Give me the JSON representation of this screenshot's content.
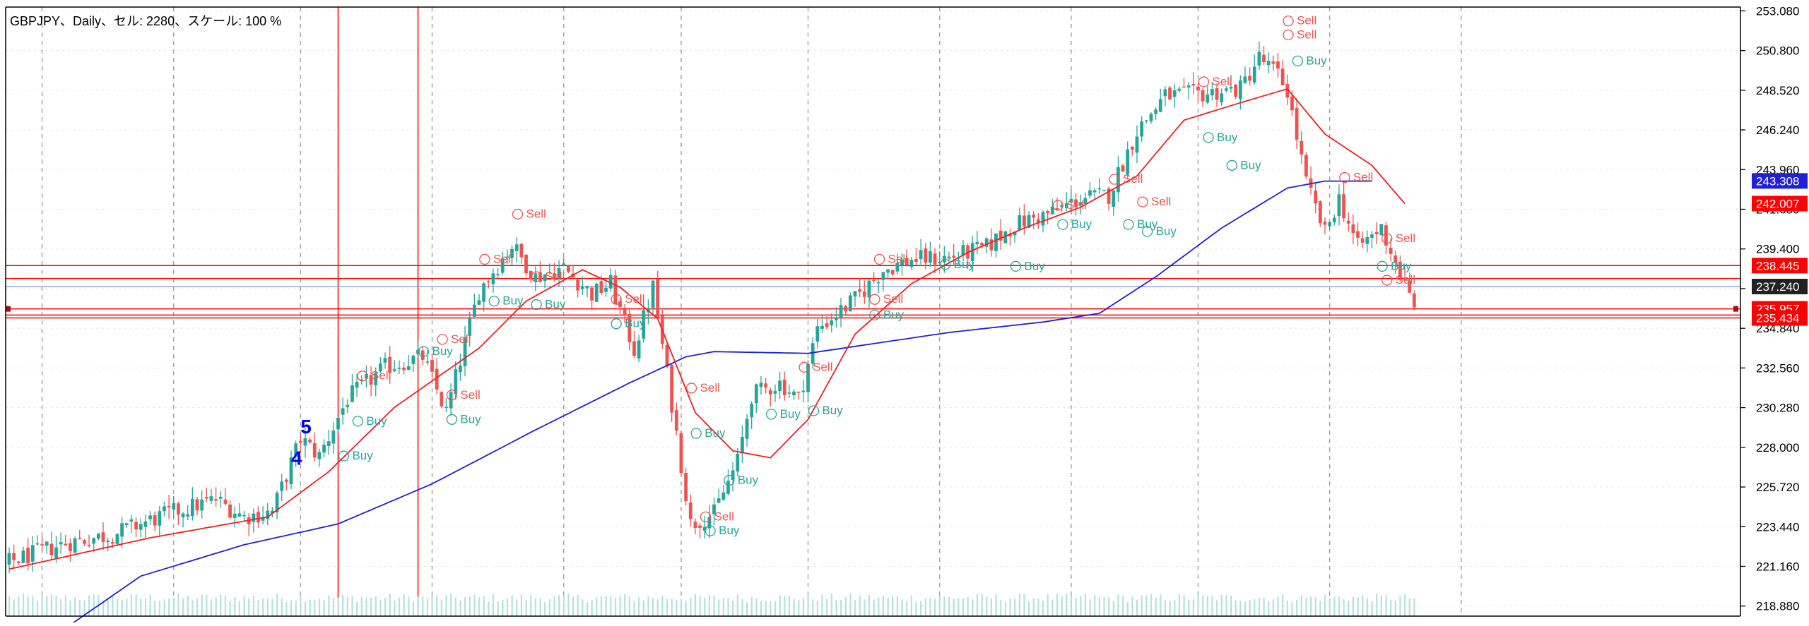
{
  "header": {
    "title": "GBPJPY、Daily、セル: 2280、スケール: 100 %"
  },
  "colors": {
    "bull": "#26a69a",
    "bear": "#ef5350",
    "ma_fast": "#ef1f1f",
    "ma_slow": "#1f1fdc",
    "hline": "#ff0000",
    "bid_line": "#7a9ad8",
    "buy_text": "#26a69a",
    "sell_text": "#ef5350",
    "wave": "#0000ff"
  },
  "chart_data": {
    "type": "candlestick",
    "symbol": "GBPJPY",
    "timeframe": "Daily",
    "ylim": [
      218.3,
      253.3
    ],
    "y_ticks": [
      "253.080",
      "250.800",
      "248.520",
      "246.240",
      "243.960",
      "241.680",
      "239.400",
      "237.120",
      "234.840",
      "232.560",
      "230.280",
      "228.000",
      "225.720",
      "223.440",
      "221.160",
      "218.880"
    ],
    "price_labels": [
      {
        "value": "243.308",
        "price": 243.308,
        "color": "#1f1fdc"
      },
      {
        "value": "242.007",
        "price": 242.007,
        "color": "#ff0000"
      },
      {
        "value": "238.445",
        "price": 238.445,
        "color": "#ff0000"
      },
      {
        "value": "237.240",
        "price": 237.24,
        "color": "#222222"
      },
      {
        "value": "235.957",
        "price": 235.957,
        "color": "#ff0000"
      },
      {
        "value": "235.434",
        "price": 235.434,
        "color": "#ff0000"
      }
    ],
    "horizontal_lines": [
      238.445,
      237.7,
      235.957,
      235.6,
      235.434
    ],
    "bid_line": 237.24,
    "vertical_lines_red_index": [
      70,
      87
    ],
    "vertical_grid_index": [
      7,
      35,
      62,
      90,
      118,
      143,
      170,
      198,
      226,
      253,
      281,
      309
    ],
    "path_anchors": [
      [
        0,
        221.4
      ],
      [
        12,
        222.5
      ],
      [
        22,
        223.0
      ],
      [
        34,
        224.2
      ],
      [
        44,
        225.0
      ],
      [
        50,
        224.0
      ],
      [
        56,
        224.3
      ],
      [
        62,
        228.5
      ],
      [
        66,
        227.5
      ],
      [
        72,
        230.8
      ],
      [
        80,
        232.6
      ],
      [
        88,
        233.2
      ],
      [
        93,
        230.0
      ],
      [
        100,
        237.0
      ],
      [
        107,
        239.6
      ],
      [
        112,
        237.8
      ],
      [
        118,
        238.3
      ],
      [
        124,
        236.8
      ],
      [
        128,
        237.4
      ],
      [
        133,
        233.6
      ],
      [
        137,
        237.2
      ],
      [
        141,
        230.5
      ],
      [
        145,
        223.6
      ],
      [
        150,
        224.2
      ],
      [
        155,
        227.2
      ],
      [
        158,
        231.0
      ],
      [
        164,
        231.7
      ],
      [
        168,
        230.8
      ],
      [
        172,
        234.8
      ],
      [
        180,
        236.5
      ],
      [
        186,
        238.2
      ],
      [
        192,
        238.8
      ],
      [
        200,
        238.9
      ],
      [
        208,
        239.5
      ],
      [
        214,
        240.8
      ],
      [
        222,
        241.5
      ],
      [
        228,
        242.3
      ],
      [
        234,
        242.5
      ],
      [
        240,
        246.2
      ],
      [
        246,
        248.2
      ],
      [
        254,
        248.3
      ],
      [
        262,
        248.6
      ],
      [
        266,
        250.4
      ],
      [
        270,
        249.4
      ],
      [
        272,
        248.5
      ],
      [
        276,
        243.2
      ],
      [
        280,
        240.3
      ],
      [
        283,
        242.3
      ],
      [
        287,
        239.5
      ],
      [
        292,
        240.6
      ],
      [
        296,
        238.0
      ],
      [
        299,
        235.9
      ]
    ],
    "ma_fast_anchors": [
      [
        0,
        221.0
      ],
      [
        30,
        222.8
      ],
      [
        55,
        224.0
      ],
      [
        68,
        226.6
      ],
      [
        82,
        230.3
      ],
      [
        100,
        233.7
      ],
      [
        110,
        236.4
      ],
      [
        122,
        238.2
      ],
      [
        130,
        237.2
      ],
      [
        138,
        235.4
      ],
      [
        146,
        230.0
      ],
      [
        154,
        227.8
      ],
      [
        162,
        227.4
      ],
      [
        170,
        229.6
      ],
      [
        180,
        234.5
      ],
      [
        192,
        237.4
      ],
      [
        204,
        239.2
      ],
      [
        216,
        240.6
      ],
      [
        228,
        241.8
      ],
      [
        240,
        243.6
      ],
      [
        250,
        246.8
      ],
      [
        262,
        247.8
      ],
      [
        272,
        248.6
      ],
      [
        280,
        246.0
      ],
      [
        290,
        244.2
      ],
      [
        297,
        242.0
      ]
    ],
    "ma_slow_anchors": [
      [
        13,
        217.8
      ],
      [
        28,
        220.6
      ],
      [
        50,
        222.4
      ],
      [
        70,
        223.6
      ],
      [
        90,
        225.9
      ],
      [
        112,
        229.0
      ],
      [
        132,
        231.7
      ],
      [
        144,
        233.2
      ],
      [
        150,
        233.5
      ],
      [
        170,
        233.4
      ],
      [
        180,
        233.8
      ],
      [
        200,
        234.6
      ],
      [
        220,
        235.2
      ],
      [
        232,
        235.7
      ],
      [
        244,
        237.8
      ],
      [
        258,
        240.6
      ],
      [
        272,
        242.9
      ],
      [
        280,
        243.3
      ],
      [
        290,
        243.3
      ]
    ],
    "signals": [
      {
        "type": "Sell",
        "i": 110,
        "price": 241.2
      },
      {
        "type": "Sell",
        "i": 103,
        "price": 238.6
      },
      {
        "type": "Buy",
        "i": 105,
        "price": 236.2
      },
      {
        "type": "Buy",
        "i": 114,
        "price": 236.0
      },
      {
        "type": "Sell",
        "i": 114,
        "price": 237.6
      },
      {
        "type": "Sell",
        "i": 131,
        "price": 236.3
      },
      {
        "type": "Buy",
        "i": 131,
        "price": 234.9
      },
      {
        "type": "Sell",
        "i": 94,
        "price": 234.0
      },
      {
        "type": "Buy",
        "i": 90,
        "price": 233.3
      },
      {
        "type": "Sell",
        "i": 77,
        "price": 231.9
      },
      {
        "type": "Buy",
        "i": 76,
        "price": 229.3
      },
      {
        "type": "Sell",
        "i": 96,
        "price": 230.8
      },
      {
        "type": "Buy",
        "i": 96,
        "price": 229.4
      },
      {
        "type": "Buy",
        "i": 73,
        "price": 227.3
      },
      {
        "type": "Sell",
        "i": 147,
        "price": 231.2
      },
      {
        "type": "Buy",
        "i": 148,
        "price": 228.6
      },
      {
        "type": "Sell",
        "i": 150,
        "price": 223.8
      },
      {
        "type": "Buy",
        "i": 151,
        "price": 223.0
      },
      {
        "type": "Buy",
        "i": 155,
        "price": 225.9
      },
      {
        "type": "Buy",
        "i": 164,
        "price": 229.7
      },
      {
        "type": "Sell",
        "i": 171,
        "price": 232.4
      },
      {
        "type": "Buy",
        "i": 173,
        "price": 229.9
      },
      {
        "type": "Sell",
        "i": 187,
        "price": 238.6
      },
      {
        "type": "Sell",
        "i": 186,
        "price": 236.3
      },
      {
        "type": "Buy",
        "i": 186,
        "price": 235.4
      },
      {
        "type": "Buy",
        "i": 201,
        "price": 238.3
      },
      {
        "type": "Buy",
        "i": 216,
        "price": 238.2
      },
      {
        "type": "Sell",
        "i": 225,
        "price": 241.7
      },
      {
        "type": "Buy",
        "i": 226,
        "price": 240.6
      },
      {
        "type": "Buy",
        "i": 240,
        "price": 240.6
      },
      {
        "type": "Sell",
        "i": 237,
        "price": 243.2
      },
      {
        "type": "Sell",
        "i": 243,
        "price": 241.9
      },
      {
        "type": "Buy",
        "i": 244,
        "price": 240.2
      },
      {
        "type": "Sell",
        "i": 256,
        "price": 248.8
      },
      {
        "type": "Buy",
        "i": 257,
        "price": 245.6
      },
      {
        "type": "Buy",
        "i": 262,
        "price": 244.0
      },
      {
        "type": "Sell",
        "i": 274,
        "price": 252.3
      },
      {
        "type": "Sell",
        "i": 274,
        "price": 251.5
      },
      {
        "type": "Buy",
        "i": 276,
        "price": 250.0
      },
      {
        "type": "Sell",
        "i": 286,
        "price": 243.3
      },
      {
        "type": "Sell",
        "i": 295,
        "price": 239.8
      },
      {
        "type": "Buy",
        "i": 294,
        "price": 238.2
      },
      {
        "type": "Sell",
        "i": 295,
        "price": 237.4
      }
    ],
    "wave_labels": [
      {
        "text": "4",
        "i": 60,
        "price": 227.0
      },
      {
        "text": "5",
        "i": 62,
        "price": 228.8
      }
    ]
  }
}
